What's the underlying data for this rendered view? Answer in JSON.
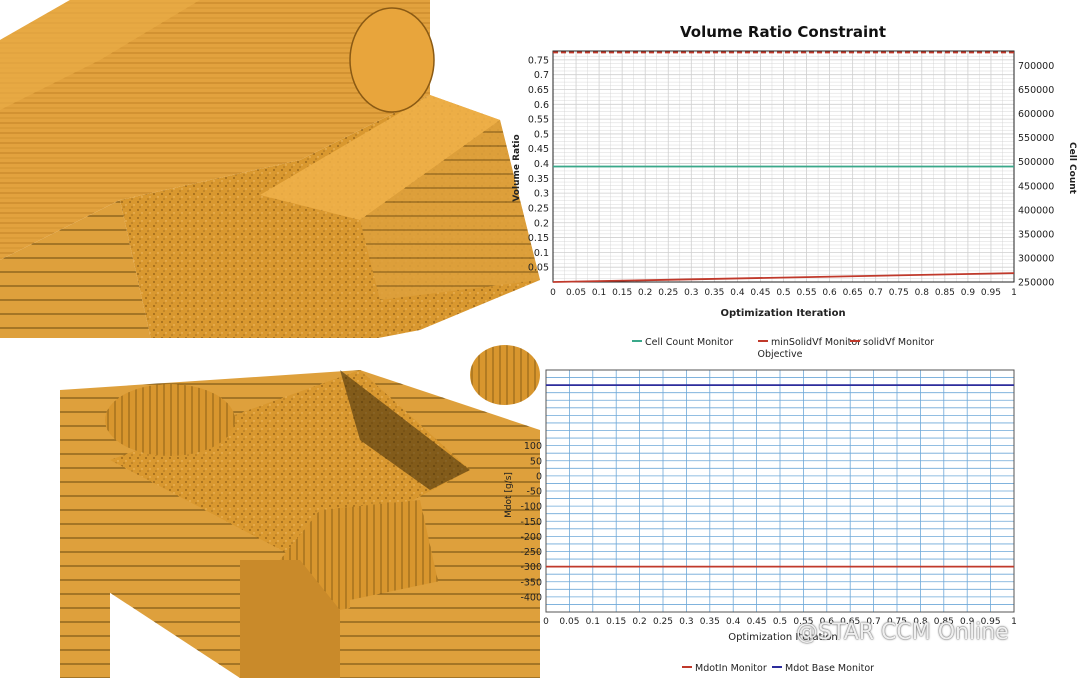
{
  "watermark": "@STAR CCM Online",
  "colors": {
    "geometry": "#e0a03a",
    "cell_count": "#3aa88a",
    "min_solid_vf": "#c0392b",
    "solid_vf": "#c0392b",
    "mdot_in": "#c0392b",
    "mdot_base": "#2c2c9c",
    "grid_top": "#cfcfcf",
    "grid_bottom": "#6ea8d8"
  },
  "chart_data": [
    {
      "type": "line",
      "title": "Volume Ratio Constraint",
      "xlabel": "Optimization Iteration",
      "ylabel": "Volume Ratio",
      "y2label": "Cell Count",
      "xlim": [
        0,
        1
      ],
      "ylim": [
        0,
        0.78
      ],
      "y2lim": [
        250000,
        730000
      ],
      "x_ticks": [
        "0",
        "0.05",
        "0.1",
        "0.15",
        "0.2",
        "0.25",
        "0.3",
        "0.35",
        "0.4",
        "0.45",
        "0.5",
        "0.55",
        "0.6",
        "0.65",
        "0.7",
        "0.75",
        "0.8",
        "0.85",
        "0.9",
        "0.95",
        "1"
      ],
      "y_ticks": [
        "0.05",
        "0.1",
        "0.15",
        "0.2",
        "0.25",
        "0.3",
        "0.35",
        "0.4",
        "0.45",
        "0.5",
        "0.55",
        "0.6",
        "0.65",
        "0.7",
        "0.75"
      ],
      "y2_ticks": [
        "250000",
        "300000",
        "350000",
        "400000",
        "450000",
        "500000",
        "550000",
        "600000",
        "650000",
        "700000"
      ],
      "grid": true,
      "legend_position": "bottom",
      "legend": [
        "Cell Count Monitor",
        "minSolidVf Monitor",
        "solidVf Monitor"
      ],
      "legend_subtitle": "Objective",
      "series": [
        {
          "name": "Cell Count Monitor",
          "axis": "y2",
          "x": [
            0,
            1
          ],
          "y": [
            727000,
            727000
          ],
          "style": "dashed",
          "color_key": "min_solid_vf"
        },
        {
          "name": "minSolidVf Monitor",
          "axis": "y",
          "x": [
            0,
            1
          ],
          "y": [
            0.39,
            0.39
          ],
          "style": "solid",
          "color_key": "cell_count"
        },
        {
          "name": "solidVf Monitor",
          "axis": "y",
          "x": [
            0,
            1
          ],
          "y": [
            0.0,
            0.03
          ],
          "style": "solid",
          "color_key": "solid_vf"
        }
      ]
    },
    {
      "type": "line",
      "title": "",
      "xlabel": "Optimization Iteration",
      "ylabel": "Mdot [g/s]",
      "xlim": [
        0,
        1
      ],
      "ylim": [
        -450,
        350
      ],
      "x_ticks": [
        "0",
        "0.05",
        "0.1",
        "0.15",
        "0.2",
        "0.25",
        "0.3",
        "0.35",
        "0.4",
        "0.45",
        "0.5",
        "0.55",
        "0.6",
        "0.65",
        "0.7",
        "0.75",
        "0.8",
        "0.85",
        "0.9",
        "0.95",
        "1"
      ],
      "y_ticks": [
        "-400",
        "-350",
        "-300",
        "-250",
        "-200",
        "-150",
        "-100",
        "-50",
        "0",
        "50",
        "100"
      ],
      "grid": true,
      "legend_position": "bottom",
      "legend": [
        "MdotIn Monitor",
        "Mdot Base Monitor"
      ],
      "series": [
        {
          "name": "MdotIn Monitor",
          "x": [
            0,
            1
          ],
          "y": [
            -300,
            -300
          ],
          "style": "solid",
          "color_key": "mdot_in"
        },
        {
          "name": "Mdot Base Monitor",
          "x": [
            0,
            1
          ],
          "y": [
            300,
            300
          ],
          "style": "solid",
          "color_key": "mdot_base"
        }
      ]
    }
  ]
}
